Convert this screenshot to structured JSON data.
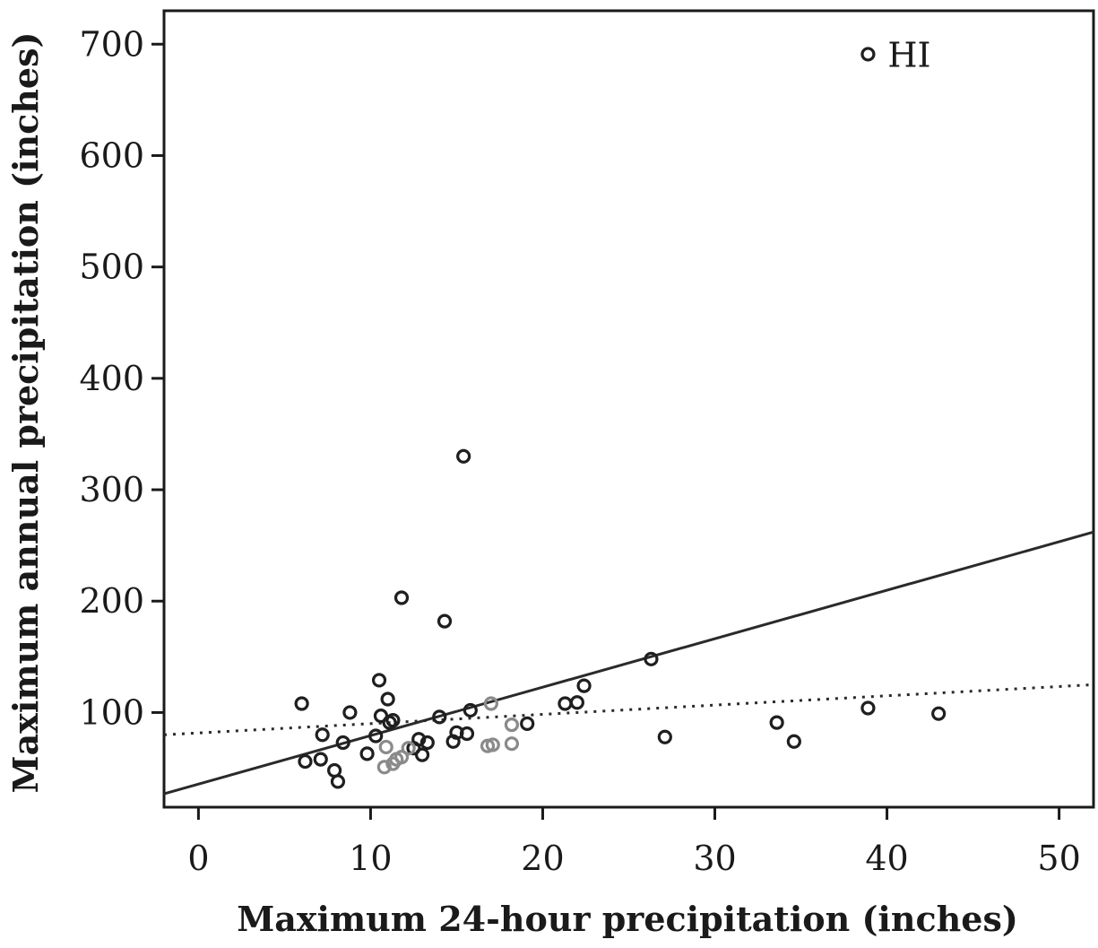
{
  "chart_data": {
    "type": "scatter",
    "title": "",
    "xlabel": "Maximum 24-hour precipitation (inches)",
    "ylabel": "Maximum annual precipitation (inches)",
    "xlim": [
      -2,
      52
    ],
    "ylim": [
      15,
      730
    ],
    "x_ticks": [
      0,
      10,
      20,
      30,
      40,
      50
    ],
    "y_ticks": [
      100,
      200,
      300,
      400,
      500,
      600,
      700
    ],
    "grid": false,
    "legend": "none",
    "colors": {
      "primary": "#1f1f1f",
      "secondary": "#8a8a8a"
    },
    "series": [
      {
        "color": "#1f1f1f",
        "points": [
          [
            38.9,
            691
          ],
          [
            15.4,
            330
          ],
          [
            11.8,
            203
          ],
          [
            14.3,
            182
          ],
          [
            26.3,
            148
          ],
          [
            10.5,
            129
          ],
          [
            22.4,
            124
          ],
          [
            11.0,
            112
          ],
          [
            6.0,
            108
          ],
          [
            21.3,
            108
          ],
          [
            22.0,
            109
          ],
          [
            38.9,
            104
          ],
          [
            15.8,
            102
          ],
          [
            8.8,
            100
          ],
          [
            43.0,
            99
          ],
          [
            10.6,
            97
          ],
          [
            14.0,
            96
          ],
          [
            11.3,
            93
          ],
          [
            11.1,
            91
          ],
          [
            19.1,
            90
          ],
          [
            33.6,
            91
          ],
          [
            15.0,
            82
          ],
          [
            15.6,
            81
          ],
          [
            7.2,
            80
          ],
          [
            10.3,
            79
          ],
          [
            27.1,
            78
          ],
          [
            12.8,
            76
          ],
          [
            34.6,
            74
          ],
          [
            8.4,
            73
          ],
          [
            13.3,
            73
          ],
          [
            14.8,
            74
          ],
          [
            12.5,
            68
          ],
          [
            9.8,
            63
          ],
          [
            13.0,
            62
          ],
          [
            7.1,
            58
          ],
          [
            6.2,
            56
          ],
          [
            7.9,
            48
          ],
          [
            8.1,
            38
          ]
        ]
      },
      {
        "color": "#8a8a8a",
        "points": [
          [
            17.0,
            108
          ],
          [
            18.2,
            89
          ],
          [
            10.9,
            69
          ],
          [
            12.2,
            68
          ],
          [
            16.8,
            70
          ],
          [
            17.1,
            71
          ],
          [
            18.2,
            72
          ],
          [
            11.5,
            58
          ],
          [
            11.8,
            60
          ],
          [
            11.3,
            54
          ],
          [
            10.8,
            51
          ]
        ]
      }
    ],
    "trend_lines": [
      {
        "style": "solid",
        "x": [
          -2,
          52
        ],
        "y": [
          27,
          262
        ]
      },
      {
        "style": "dotted",
        "x": [
          -2,
          52
        ],
        "y": [
          80,
          125
        ]
      }
    ],
    "annotations": [
      {
        "text": "HI",
        "x": 38.9,
        "y": 691
      }
    ]
  }
}
